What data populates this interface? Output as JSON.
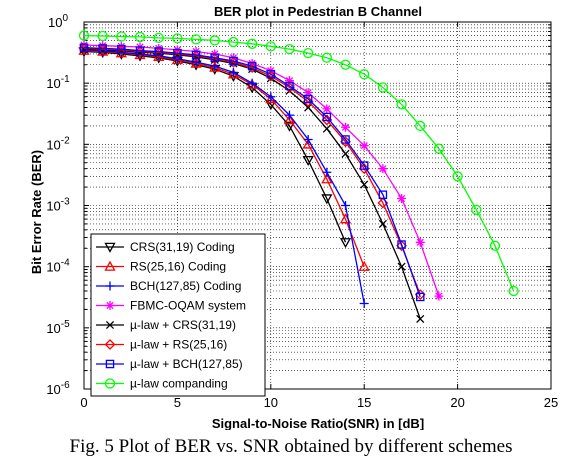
{
  "caption": "Fig. 5 Plot of BER vs. SNR obtained by different schemes",
  "chart_data": {
    "type": "line",
    "title": "BER plot in Pedestrian B Channel",
    "xlabel": "Signal-to-Noise Ratio(SNR) in [dB]",
    "ylabel": "Bit Error Rate (BER)",
    "xlim": [
      0,
      25
    ],
    "ylim_log10": [
      -6,
      0
    ],
    "yscale": "log",
    "grid": true,
    "legend_position": "bottom-left",
    "x_ticks": [
      0,
      5,
      10,
      15,
      20,
      25
    ],
    "x_tick_labels": [
      "0",
      "5",
      "10",
      "15",
      "20",
      "25"
    ],
    "y_ticks_log10": [
      -6,
      -5,
      -4,
      -3,
      -2,
      -1,
      0
    ],
    "y_tick_labels": [
      {
        "base": "10",
        "exp": "-6"
      },
      {
        "base": "10",
        "exp": "-5"
      },
      {
        "base": "10",
        "exp": "-4"
      },
      {
        "base": "10",
        "exp": "-3"
      },
      {
        "base": "10",
        "exp": "-2"
      },
      {
        "base": "10",
        "exp": "-1"
      },
      {
        "base": "10",
        "exp": "0"
      }
    ],
    "series": [
      {
        "name": "CRS(31,19) Coding",
        "color": "#000000",
        "marker": "triangle-down",
        "x": [
          0,
          1,
          2,
          3,
          4,
          5,
          6,
          7,
          8,
          9,
          10,
          11,
          12,
          13,
          14
        ],
        "y": [
          0.33,
          0.32,
          0.3,
          0.28,
          0.26,
          0.23,
          0.2,
          0.17,
          0.13,
          0.085,
          0.045,
          0.02,
          0.0055,
          0.0013,
          0.00025
        ]
      },
      {
        "name": "RS(25,16) Coding",
        "color": "#ff0000",
        "marker": "triangle-up",
        "x": [
          0,
          1,
          2,
          3,
          4,
          5,
          6,
          7,
          8,
          9,
          10,
          11,
          12,
          13,
          14,
          15
        ],
        "y": [
          0.34,
          0.33,
          0.31,
          0.29,
          0.27,
          0.24,
          0.21,
          0.18,
          0.14,
          0.095,
          0.055,
          0.025,
          0.01,
          0.0027,
          0.0006,
          0.0001
        ]
      },
      {
        "name": "BCH(127,85) Coding",
        "color": "#0000ff",
        "marker": "plus",
        "x": [
          0,
          1,
          2,
          3,
          4,
          5,
          6,
          7,
          8,
          9,
          10,
          11,
          12,
          13,
          14,
          15
        ],
        "y": [
          0.35,
          0.34,
          0.32,
          0.3,
          0.28,
          0.25,
          0.22,
          0.19,
          0.15,
          0.1,
          0.06,
          0.03,
          0.012,
          0.0035,
          0.001,
          2.5e-05
        ]
      },
      {
        "name": "FBMC-OQAM system",
        "color": "#ff00ff",
        "marker": "asterisk",
        "x": [
          0,
          1,
          2,
          3,
          4,
          5,
          6,
          7,
          8,
          9,
          10,
          11,
          12,
          13,
          14,
          15,
          16,
          17,
          18,
          19
        ],
        "y": [
          0.42,
          0.41,
          0.4,
          0.39,
          0.37,
          0.35,
          0.33,
          0.3,
          0.26,
          0.21,
          0.16,
          0.11,
          0.07,
          0.038,
          0.019,
          0.0095,
          0.004,
          0.0013,
          0.00025,
          3.3e-05
        ]
      },
      {
        "name": "µ-law + CRS(31,19)",
        "color": "#000000",
        "marker": "cross",
        "x": [
          0,
          1,
          2,
          3,
          4,
          5,
          6,
          7,
          8,
          9,
          10,
          11,
          12,
          13,
          14,
          15,
          16,
          17,
          18
        ],
        "y": [
          0.36,
          0.35,
          0.34,
          0.32,
          0.31,
          0.29,
          0.27,
          0.24,
          0.21,
          0.17,
          0.12,
          0.075,
          0.04,
          0.018,
          0.007,
          0.0022,
          0.0005,
          0.0001,
          1.4e-05
        ]
      },
      {
        "name": "µ-law + RS(25,16)",
        "color": "#ff0000",
        "marker": "diamond",
        "x": [
          0,
          1,
          2,
          3,
          4,
          5,
          6,
          7,
          8,
          9,
          10,
          11,
          12,
          13,
          14,
          15,
          16,
          17,
          18
        ],
        "y": [
          0.37,
          0.36,
          0.35,
          0.33,
          0.32,
          0.3,
          0.28,
          0.25,
          0.22,
          0.18,
          0.13,
          0.085,
          0.05,
          0.025,
          0.011,
          0.004,
          0.0011,
          0.00022,
          3.5e-05
        ]
      },
      {
        "name": "µ-law + BCH(127,85)",
        "color": "#0000ff",
        "marker": "square",
        "x": [
          0,
          1,
          2,
          3,
          4,
          5,
          6,
          7,
          8,
          9,
          10,
          11,
          12,
          13,
          14,
          15,
          16,
          17,
          18
        ],
        "y": [
          0.38,
          0.37,
          0.36,
          0.34,
          0.33,
          0.31,
          0.29,
          0.26,
          0.23,
          0.19,
          0.14,
          0.09,
          0.055,
          0.028,
          0.012,
          0.0045,
          0.0015,
          0.00023,
          3.2e-05
        ]
      },
      {
        "name": "µ-law companding",
        "color": "#00ff00",
        "marker": "circle",
        "x": [
          0,
          1,
          2,
          3,
          4,
          5,
          6,
          7,
          8,
          9,
          10,
          11,
          12,
          13,
          14,
          15,
          16,
          17,
          18,
          19,
          20,
          21,
          22,
          23
        ],
        "y": [
          0.6,
          0.59,
          0.58,
          0.57,
          0.55,
          0.54,
          0.52,
          0.5,
          0.47,
          0.44,
          0.4,
          0.36,
          0.31,
          0.26,
          0.2,
          0.14,
          0.085,
          0.045,
          0.02,
          0.0085,
          0.003,
          0.00085,
          0.00022,
          4e-05
        ]
      }
    ]
  }
}
